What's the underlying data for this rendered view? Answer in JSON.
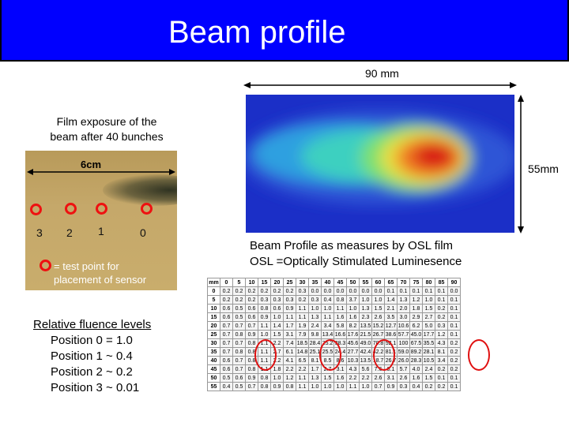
{
  "header": {
    "title": "Beam profile"
  },
  "beam_image": {
    "width_label": "90 mm",
    "height_label": "55mm",
    "caption_line1": "Beam Profile as measures by OSL film",
    "caption_line2": "OSL =Optically Stimulated Luminesence"
  },
  "film": {
    "caption_line1": "Film exposure of the",
    "caption_line2": "beam after 40 bunches",
    "scale_label": "6cm",
    "points": [
      {
        "label": "3",
        "color": "#ee1111"
      },
      {
        "label": "2",
        "color": "#ee1111"
      },
      {
        "label": "1",
        "color": "#ee1111"
      },
      {
        "label": "0",
        "color": "#ee1111"
      }
    ],
    "legend_line1": "= test point for",
    "legend_line2": "placement of sensor"
  },
  "fluence": {
    "heading": "Relative fluence levels",
    "lines": [
      "Position 0 = 1.0",
      "Position 1 ~ 0.4",
      "Position 2 ~ 0.2",
      "Position 3 ~ 0.01"
    ]
  },
  "table": {
    "header": [
      "mm",
      "0",
      "5",
      "10",
      "15",
      "20",
      "25",
      "30",
      "35",
      "40",
      "45",
      "50",
      "55",
      "60",
      "65",
      "70",
      "75",
      "80",
      "85",
      "90"
    ],
    "rows": [
      [
        "0",
        "0.2",
        "0.2",
        "0.2",
        "0.2",
        "0.2",
        "0.2",
        "0.3",
        "0.0",
        "0.0",
        "0.0",
        "0.0",
        "0.0",
        "0.0",
        "0.1",
        "0.1",
        "0.1",
        "0.1",
        "0.1",
        "0.0"
      ],
      [
        "5",
        "0.2",
        "0.2",
        "0.2",
        "0.3",
        "0.3",
        "0.3",
        "0.2",
        "0.3",
        "0.4",
        "0.8",
        "3.7",
        "1.0",
        "1.0",
        "1.4",
        "1.3",
        "1.2",
        "1.0",
        "0.1",
        "0.1"
      ],
      [
        "10",
        "0.6",
        "0.5",
        "0.6",
        "0.8",
        "0.6",
        "0.9",
        "1.1",
        "1.0",
        "1.0",
        "1.1",
        "1.0",
        "1.3",
        "1.5",
        "2.1",
        "2.0",
        "1.8",
        "1.5",
        "0.2",
        "0.1"
      ],
      [
        "15",
        "0.6",
        "0.5",
        "0.6",
        "0.9",
        "1.0",
        "1.1",
        "1.1",
        "1.3",
        "1.1",
        "1.6",
        "1.6",
        "2.3",
        "2.6",
        "3.5",
        "3.0",
        "2.9",
        "2.7",
        "0.2",
        "0.1"
      ],
      [
        "20",
        "0.7",
        "0.7",
        "0.7",
        "1.1",
        "1.4",
        "1.7",
        "1.9",
        "2.4",
        "3.4",
        "5.8",
        "8.2",
        "13.5",
        "15.2",
        "12.7",
        "10.6",
        "6.2",
        "5.0",
        "0.3",
        "0.1"
      ],
      [
        "25",
        "0.7",
        "0.8",
        "0.9",
        "1.0",
        "1.5",
        "3.1",
        "7.9",
        "9.8",
        "13.4",
        "16.6",
        "17.6",
        "21.5",
        "26.7",
        "38.6",
        "57.7",
        "45.0",
        "17.7",
        "1.2",
        "0.1"
      ],
      [
        "30",
        "0.7",
        "0.7",
        "0.8",
        "1.1",
        "2.2",
        "7.4",
        "18.5",
        "28.4",
        "25.2",
        "38.3",
        "45.6",
        "49.0",
        "70.8",
        "52.1",
        "100",
        "67.5",
        "35.5",
        "4.3",
        "0.2"
      ],
      [
        "35",
        "0.7",
        "0.8",
        "0.8",
        "1.1",
        "2.7",
        "6.1",
        "14.8",
        "25.1",
        "25.5",
        "24.4",
        "27.7",
        "42.4",
        "42.2",
        "81.1",
        "59.0",
        "89.2",
        "28.1",
        "8.1",
        "0.2"
      ],
      [
        "40",
        "0.6",
        "0.7",
        "0.8",
        "1.1",
        "2.2",
        "4.1",
        "6.5",
        "8.1",
        "8.5",
        "8.6",
        "10.3",
        "13.5",
        "18.7",
        "26.7",
        "26.0",
        "28.3",
        "10.5",
        "3.4",
        "0.2"
      ],
      [
        "45",
        "0.6",
        "0.7",
        "0.8",
        "1.1",
        "1.8",
        "2.2",
        "2.2",
        "1.7",
        "2.7",
        "3.1",
        "4.3",
        "5.6",
        "7.6",
        "8.1",
        "5.7",
        "4.0",
        "2.4",
        "0.2",
        "0.2"
      ],
      [
        "50",
        "0.5",
        "0.6",
        "0.9",
        "0.8",
        "1.0",
        "1.2",
        "1.1",
        "1.3",
        "1.5",
        "1.6",
        "2.2",
        "2.2",
        "2.6",
        "3.1",
        "2.6",
        "1.6",
        "1.5",
        "0.1",
        "0.1"
      ],
      [
        "55",
        "0.4",
        "0.5",
        "0.7",
        "0.8",
        "0.9",
        "0.8",
        "1.1",
        "1.0",
        "1.0",
        "1.0",
        "1.1",
        "1.0",
        "0.7",
        "0.9",
        "0.3",
        "0.4",
        "0.2",
        "0.2",
        "0.1"
      ]
    ]
  },
  "colors": {
    "header_bg": "#0000ff",
    "accent_red": "#e01010"
  }
}
